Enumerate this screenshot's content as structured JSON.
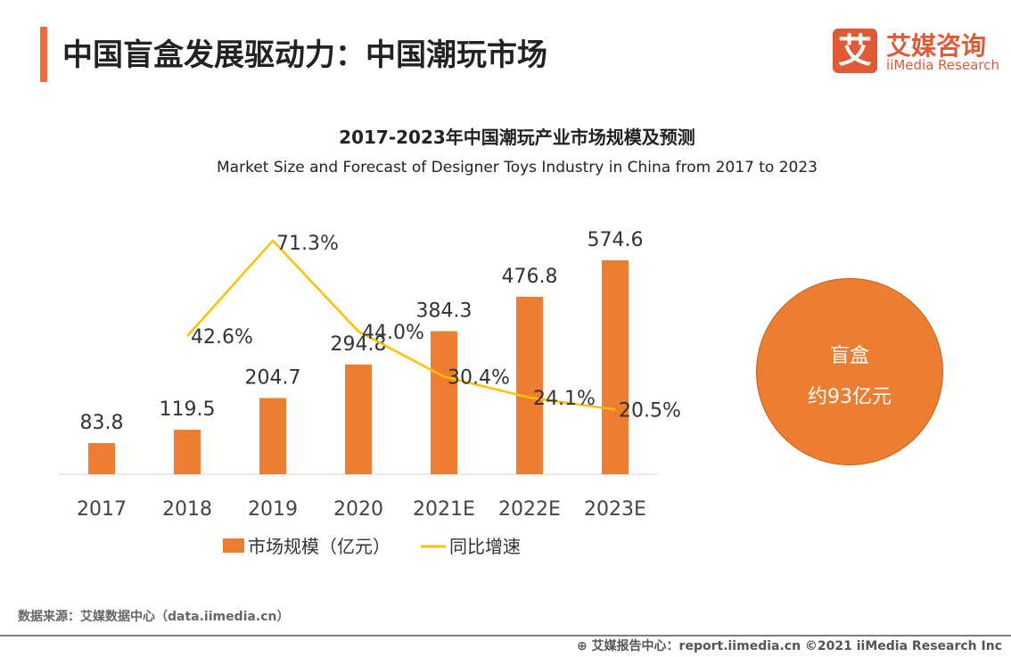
{
  "header": {
    "title": "中国盲盒发展驱动力：中国潮玩市场",
    "logo_mark": "艾",
    "logo_cn": "艾媒咨询",
    "logo_en": "iiMedia Research"
  },
  "chart_data": {
    "type": "bar+line",
    "title": "2017-2023年中国潮玩产业市场规模及预测",
    "subtitle": "Market Size and Forecast of Designer Toys Industry in China from 2017 to 2023",
    "categories": [
      "2017",
      "2018",
      "2019",
      "2020",
      "2021E",
      "2022E",
      "2023E"
    ],
    "series": [
      {
        "name": "市场规模（亿元）",
        "type": "bar",
        "color": "#ed7d31",
        "values": [
          83.8,
          119.5,
          204.7,
          294.8,
          384.3,
          476.8,
          574.6
        ],
        "labels": [
          "83.8",
          "119.5",
          "204.7",
          "294.8",
          "384.3",
          "476.8",
          "574.6"
        ]
      },
      {
        "name": "同比增速",
        "type": "line",
        "color": "#ffc000",
        "values": [
          null,
          42.6,
          71.3,
          44.0,
          30.4,
          24.1,
          20.5
        ],
        "labels": [
          "",
          "42.6%",
          "71.3%",
          "44.0%",
          "30.4%",
          "24.1%",
          "20.5%"
        ]
      }
    ],
    "legend": "bottom",
    "grid": false
  },
  "callout": {
    "line1": "盲盒",
    "line2": "约93亿元",
    "color": "#ed7d31"
  },
  "footer": {
    "source": "数据来源：艾媒数据中心（data.iimedia.cn）",
    "credit": "⊕ 艾媒报告中心：report.iimedia.cn  ©2021  iiMedia Research  Inc"
  }
}
